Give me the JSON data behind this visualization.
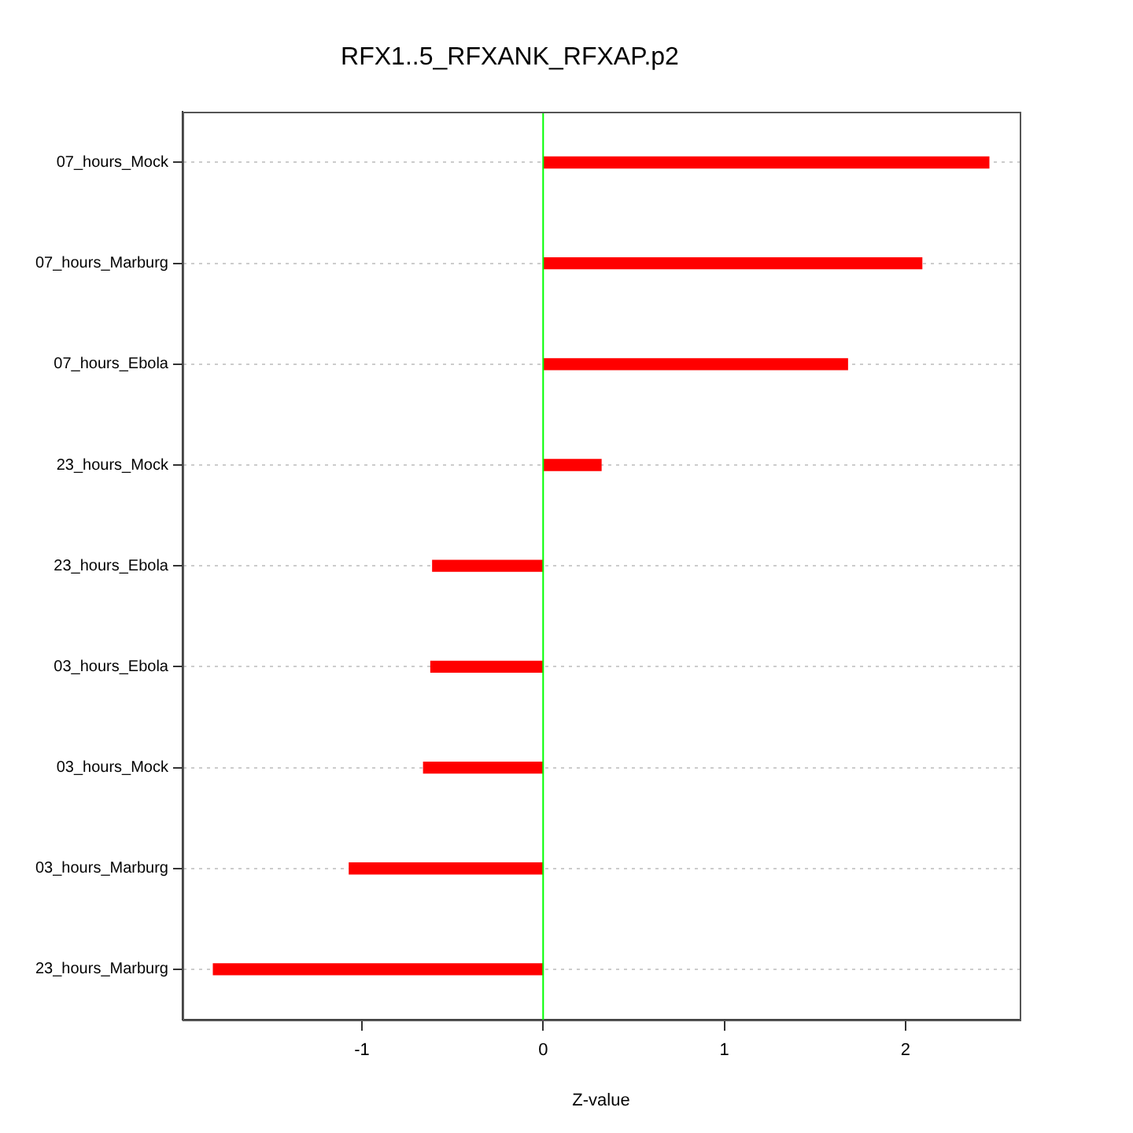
{
  "chart_data": {
    "type": "bar",
    "orientation": "horizontal",
    "title": "RFX1..5_RFXANK_RFXAP.p2",
    "xlabel": "Z-value",
    "categories": [
      "07_hours_Mock",
      "07_hours_Marburg",
      "07_hours_Ebola",
      "23_hours_Mock",
      "23_hours_Ebola",
      "03_hours_Ebola",
      "03_hours_Mock",
      "03_hours_Marburg",
      "23_hours_Marburg"
    ],
    "values": [
      2.46,
      2.09,
      1.68,
      0.32,
      -0.61,
      -0.62,
      -0.66,
      -1.07,
      -1.82
    ],
    "color": "#ff0000",
    "xlim": [
      -1.99,
      2.63
    ],
    "xticks": [
      -1,
      0,
      1,
      2
    ],
    "grid": "y",
    "ref_lines": [
      {
        "axis": "x",
        "value": 0,
        "color": "#00ff00"
      }
    ]
  }
}
